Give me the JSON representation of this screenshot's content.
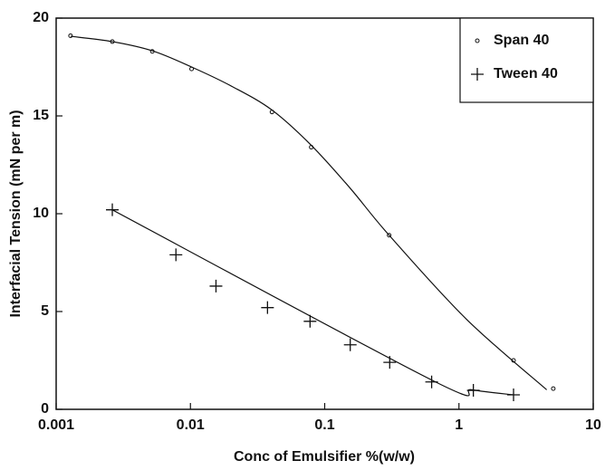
{
  "chart_data": {
    "type": "scatter",
    "x_label": "Conc of Emulsifier %(w/w)",
    "y_label": "Interfacial Tension (mN per m)",
    "xlog": true,
    "xlim": [
      0.001,
      10
    ],
    "xticks": [
      0.001,
      0.01,
      0.1,
      1,
      10
    ],
    "ylim": [
      0,
      20
    ],
    "yticks": [
      0,
      5,
      10,
      15,
      20
    ],
    "legend": "top-right",
    "series": [
      {
        "name": "Span 40",
        "color": "#111111",
        "marker": "circle",
        "x": [
          0.00128,
          0.00262,
          0.0052,
          0.0102,
          0.0405,
          0.0794,
          0.302,
          2.55,
          5.04
        ],
        "values": [
          19.1,
          18.8,
          18.3,
          17.4,
          15.2,
          13.4,
          8.9,
          2.5,
          1.06
        ],
        "fit_x": [
          0.00128,
          0.00262,
          0.0052,
          0.0102,
          0.0205,
          0.0405,
          0.0794,
          0.155,
          0.302,
          1.14,
          4.5
        ],
        "fit_values": [
          19.07,
          18.8,
          18.33,
          17.5,
          16.5,
          15.3,
          13.5,
          11.3,
          8.9,
          4.6,
          1.0
        ]
      },
      {
        "name": "Tween 40",
        "color": "#111111",
        "marker": "plus",
        "x": [
          0.00262,
          0.0078,
          0.0155,
          0.0375,
          0.0778,
          0.155,
          0.305,
          0.626,
          1.28,
          2.55
        ],
        "values": [
          10.2,
          7.9,
          6.3,
          5.2,
          4.5,
          3.3,
          2.4,
          1.4,
          0.97,
          0.74
        ],
        "fit_x": [
          0.00262,
          0.626,
          1.25,
          2.55
        ],
        "fit_values": [
          10.2,
          1.5,
          1.0,
          0.74
        ]
      }
    ]
  }
}
